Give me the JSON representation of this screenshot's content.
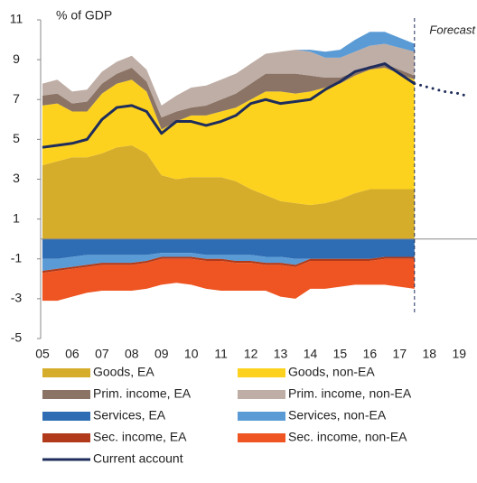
{
  "chart_data": {
    "type": "stacked_area_line",
    "ylabel": "% of GDP",
    "annotation": "Forecast",
    "forecast_start": 2017.5,
    "xlim": [
      2004.94,
      2019.6
    ],
    "ylim": [
      -5,
      11
    ],
    "yticks": [
      11,
      9,
      7,
      5,
      3,
      1,
      -1,
      -3,
      -5
    ],
    "xticks": [
      {
        "value": 2005,
        "label": "05"
      },
      {
        "value": 2006,
        "label": "06"
      },
      {
        "value": 2007,
        "label": "07"
      },
      {
        "value": 2008,
        "label": "08"
      },
      {
        "value": 2009,
        "label": "09"
      },
      {
        "value": 2010,
        "label": "10"
      },
      {
        "value": 2011,
        "label": "11"
      },
      {
        "value": 2012,
        "label": "12"
      },
      {
        "value": 2013,
        "label": "13"
      },
      {
        "value": 2014,
        "label": "14"
      },
      {
        "value": 2015,
        "label": "15"
      },
      {
        "value": 2016,
        "label": "16"
      },
      {
        "value": 2017,
        "label": "17"
      },
      {
        "value": 2018,
        "label": "18"
      },
      {
        "value": 2019,
        "label": "19"
      }
    ],
    "x": [
      2005,
      2005.5,
      2006,
      2006.5,
      2007,
      2007.5,
      2008,
      2008.5,
      2009,
      2009.5,
      2010,
      2010.5,
      2011,
      2011.5,
      2012,
      2012.5,
      2013,
      2013.5,
      2014,
      2014.5,
      2015,
      2015.5,
      2016,
      2016.5,
      2017,
      2017.5
    ],
    "series": [
      {
        "name": "Goods, EA",
        "color": "#d6ad2b",
        "values": [
          3.7,
          3.9,
          4.1,
          4.1,
          4.3,
          4.6,
          4.7,
          4.3,
          3.2,
          3.0,
          3.1,
          3.1,
          3.1,
          2.9,
          2.5,
          2.2,
          1.9,
          1.8,
          1.7,
          1.8,
          2.0,
          2.3,
          2.5,
          2.5,
          2.5,
          2.5
        ]
      },
      {
        "name": "Goods, non-EA",
        "color": "#fdd21f",
        "values": [
          3.0,
          2.9,
          2.3,
          2.3,
          3.0,
          3.2,
          3.3,
          3.1,
          2.3,
          2.9,
          3.1,
          3.1,
          3.3,
          3.7,
          4.5,
          5.2,
          5.5,
          5.5,
          5.7,
          5.8,
          5.8,
          5.9,
          6.0,
          6.1,
          5.8,
          5.5
        ]
      },
      {
        "name": "Prim. income, EA",
        "color": "#8b7465",
        "values": [
          0.5,
          0.5,
          0.4,
          0.5,
          0.5,
          0.5,
          0.6,
          0.5,
          0.6,
          0.5,
          0.4,
          0.5,
          0.6,
          0.7,
          0.8,
          0.9,
          0.9,
          1.0,
          0.8,
          0.5,
          0.3,
          0.2,
          0.2,
          0.2,
          0.2,
          0.2
        ]
      },
      {
        "name": "Prim. income, non-EA",
        "color": "#bfaea6",
        "values": [
          0.6,
          0.7,
          0.6,
          0.6,
          0.6,
          0.6,
          0.6,
          0.6,
          0.6,
          0.8,
          1.0,
          1.0,
          1.0,
          1.0,
          1.0,
          1.0,
          1.1,
          1.2,
          1.2,
          1.0,
          1.0,
          1.0,
          1.0,
          1.0,
          1.1,
          1.2
        ]
      },
      {
        "name": "Services, EA",
        "color": "#2e6db4",
        "values": [
          -1.0,
          -1.0,
          -0.9,
          -0.8,
          -0.8,
          -0.8,
          -0.8,
          -0.8,
          -0.7,
          -0.7,
          -0.7,
          -0.8,
          -0.8,
          -0.8,
          -0.8,
          -0.9,
          -0.9,
          -1.0,
          -1.0,
          -1.0,
          -1.0,
          -1.0,
          -1.0,
          -0.9,
          -0.9,
          -0.9
        ]
      },
      {
        "name": "Services, non-EA",
        "color": "#5b9bd5",
        "values": [
          -0.6,
          -0.5,
          -0.5,
          -0.5,
          -0.4,
          -0.4,
          -0.4,
          -0.3,
          -0.2,
          -0.2,
          -0.2,
          -0.2,
          -0.2,
          -0.3,
          -0.3,
          -0.3,
          -0.3,
          -0.3,
          0.1,
          0.3,
          0.4,
          0.6,
          0.7,
          0.6,
          0.5,
          0.4
        ]
      },
      {
        "name": "Sec. income, EA",
        "color": "#b03a1a",
        "values": [
          -0.1,
          -0.1,
          -0.1,
          -0.1,
          -0.1,
          -0.1,
          -0.1,
          -0.1,
          -0.1,
          -0.1,
          -0.1,
          -0.1,
          -0.1,
          -0.1,
          -0.1,
          -0.1,
          -0.1,
          -0.1,
          -0.1,
          -0.1,
          -0.1,
          -0.1,
          -0.1,
          -0.1,
          -0.1,
          -0.1
        ]
      },
      {
        "name": "Sec. income, non-EA",
        "color": "#ee5522",
        "values": [
          -1.4,
          -1.5,
          -1.4,
          -1.3,
          -1.3,
          -1.3,
          -1.3,
          -1.3,
          -1.3,
          -1.2,
          -1.3,
          -1.4,
          -1.5,
          -1.4,
          -1.4,
          -1.3,
          -1.6,
          -1.6,
          -1.4,
          -1.4,
          -1.3,
          -1.2,
          -1.2,
          -1.3,
          -1.4,
          -1.5
        ]
      }
    ],
    "line": {
      "name": "Current account",
      "color": "#1f2d5c",
      "values": [
        4.6,
        4.7,
        4.8,
        5.0,
        6.0,
        6.6,
        6.7,
        6.4,
        5.3,
        5.9,
        5.9,
        5.7,
        5.9,
        6.2,
        6.8,
        7.0,
        6.8,
        6.9,
        7.0,
        7.5,
        7.9,
        8.4,
        8.6,
        8.8,
        8.3,
        7.8
      ],
      "forecast": {
        "x": [
          2017.5,
          2018,
          2018.5,
          2019,
          2019.2
        ],
        "values": [
          7.8,
          7.6,
          7.4,
          7.3,
          7.2
        ]
      }
    }
  }
}
